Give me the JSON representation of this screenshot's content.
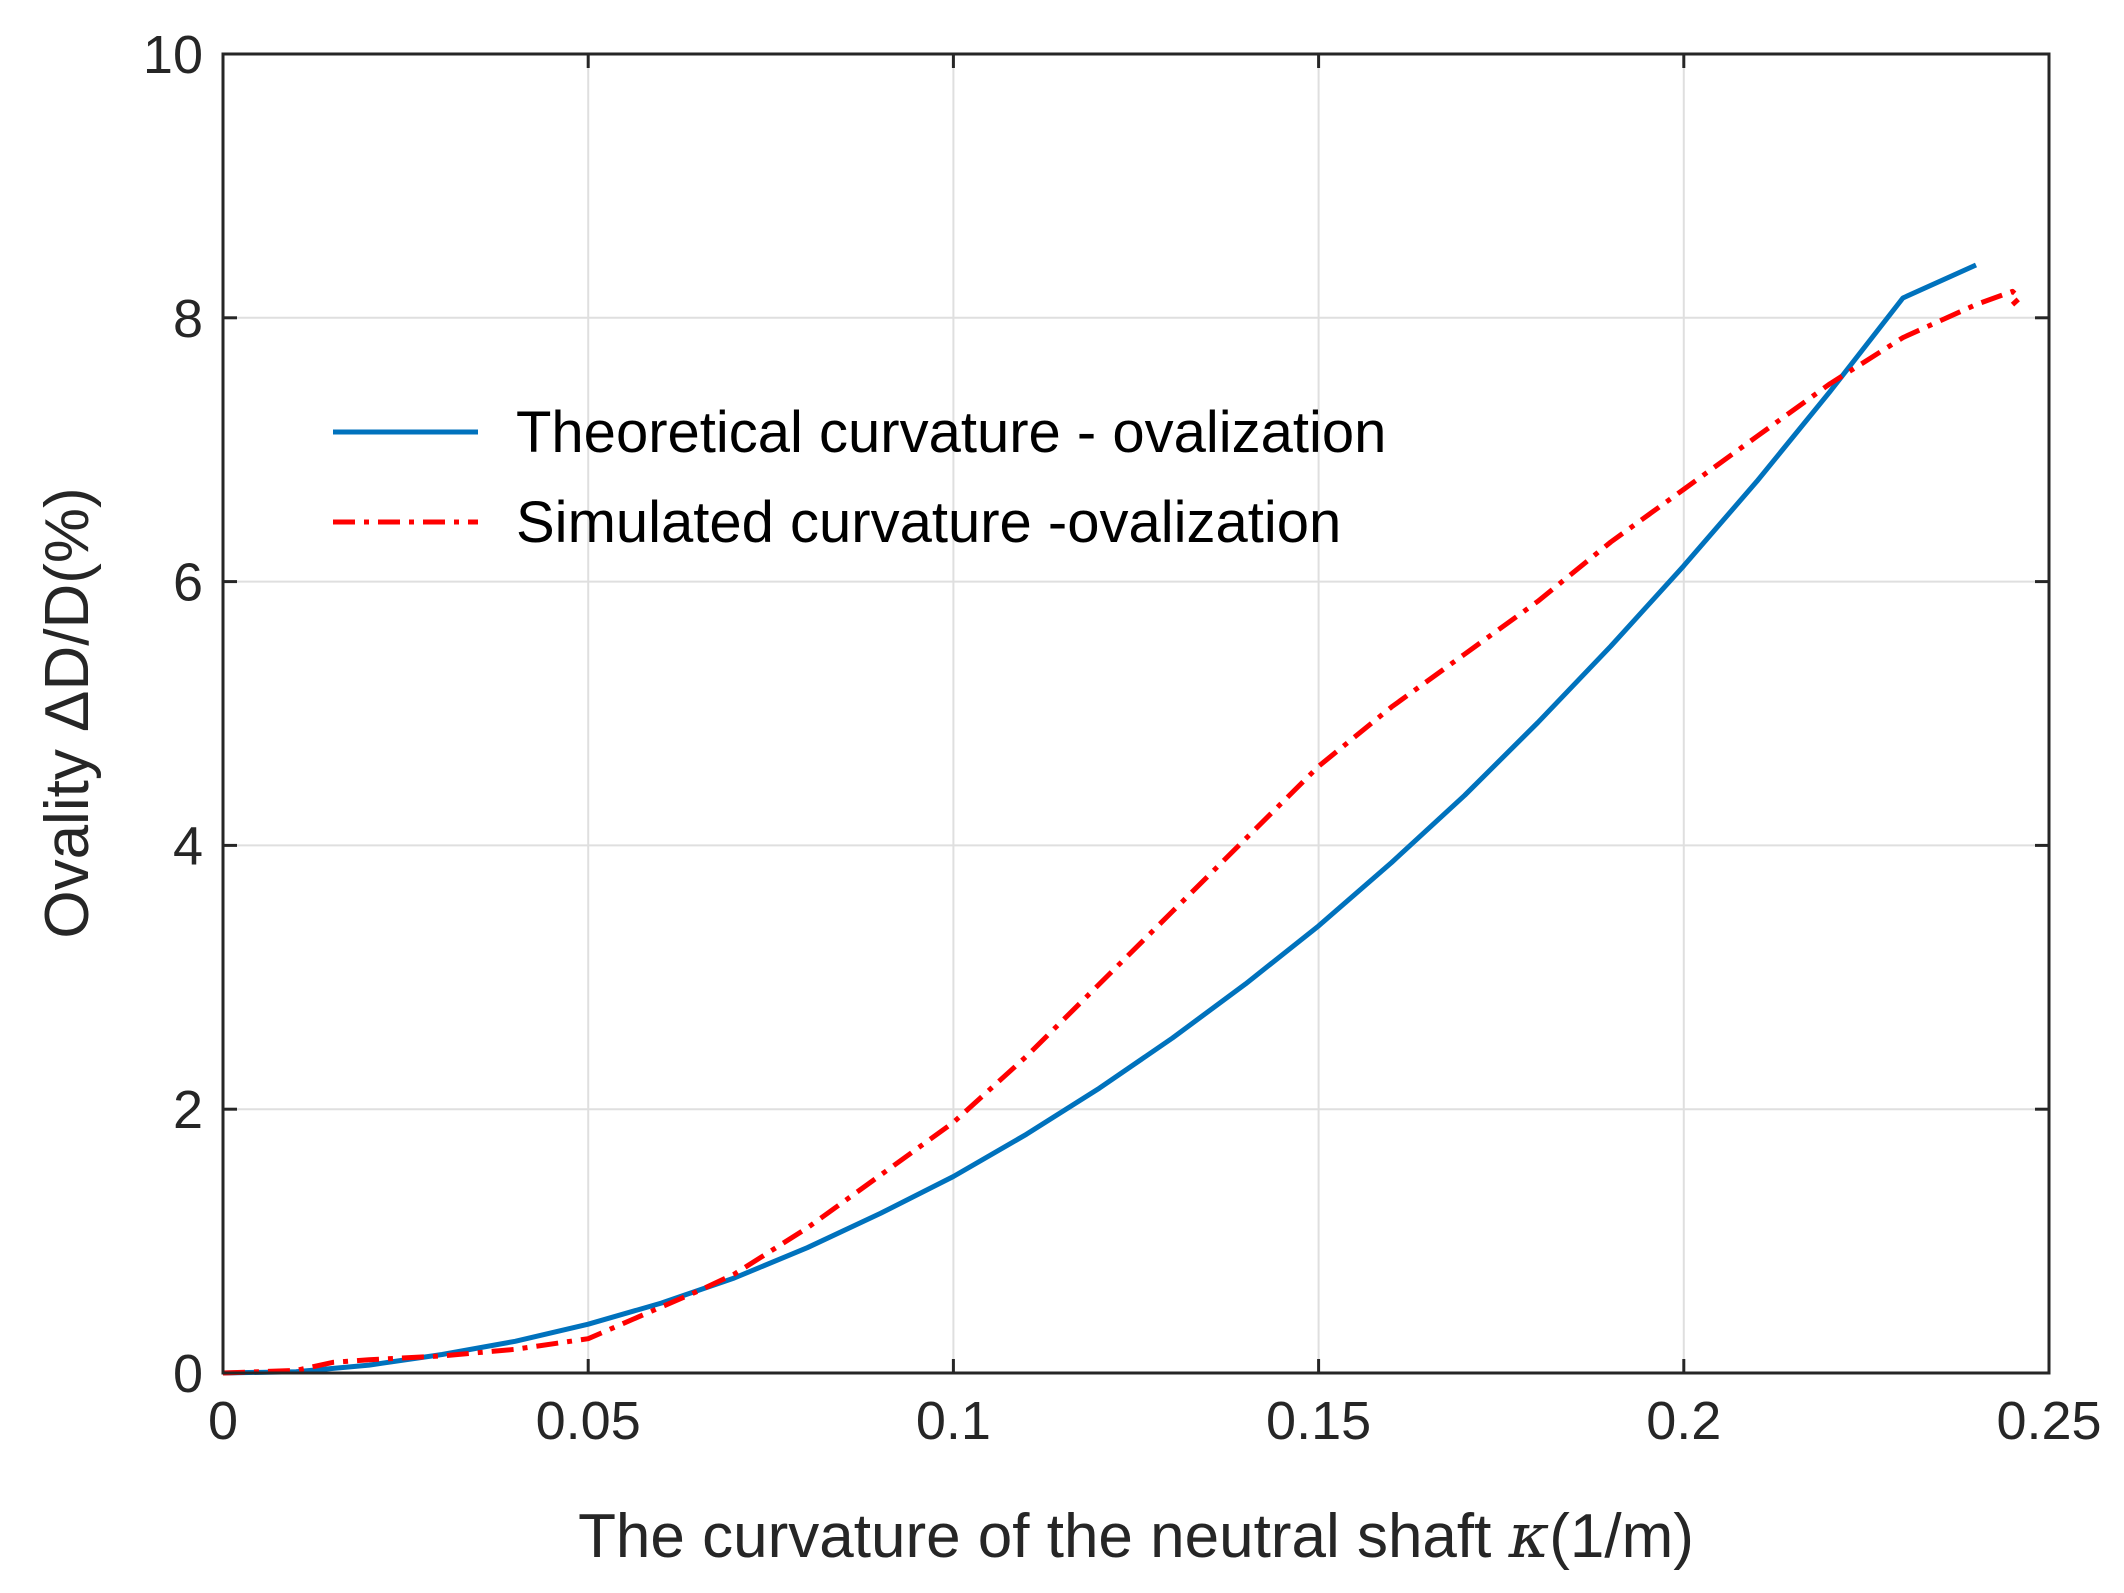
{
  "chart_data": {
    "type": "line",
    "title": "",
    "xlabel": "The curvature of the neutral shaft",
    "xlabel_symbol": "κ",
    "xlabel_units": "(1/m)",
    "ylabel": "Ovality ΔD/D(%)",
    "xlim": [
      0,
      0.25
    ],
    "ylim": [
      0,
      10
    ],
    "grid": true,
    "legend_position": "upper-left",
    "x_ticks": [
      0,
      0.05,
      0.1,
      0.15,
      0.2,
      0.25
    ],
    "x_tick_labels": [
      "0",
      "0.05",
      "0.1",
      "0.15",
      "0.2",
      "0.25"
    ],
    "y_ticks": [
      0,
      2,
      4,
      6,
      8,
      10
    ],
    "y_tick_labels": [
      "0",
      "2",
      "4",
      "6",
      "8",
      "10"
    ],
    "series": [
      {
        "name": "Theoretical curvature - ovalization",
        "color": "#0072BD",
        "style": "solid",
        "x": [
          0,
          0.01,
          0.02,
          0.03,
          0.04,
          0.05,
          0.06,
          0.07,
          0.08,
          0.09,
          0.1,
          0.11,
          0.12,
          0.13,
          0.14,
          0.15,
          0.16,
          0.17,
          0.18,
          0.19,
          0.2,
          0.21,
          0.22,
          0.23,
          0.24
        ],
        "y": [
          0,
          0.01,
          0.06,
          0.14,
          0.24,
          0.37,
          0.53,
          0.72,
          0.95,
          1.21,
          1.49,
          1.81,
          2.16,
          2.54,
          2.95,
          3.39,
          3.87,
          4.38,
          4.93,
          5.51,
          6.12,
          6.76,
          7.44,
          8.15,
          8.4
        ]
      },
      {
        "name": "Simulated curvature -ovalization",
        "color": "#FF0000",
        "style": "dashdot",
        "x": [
          0,
          0.01,
          0.015,
          0.02,
          0.03,
          0.04,
          0.05,
          0.06,
          0.065,
          0.07,
          0.08,
          0.09,
          0.1,
          0.11,
          0.12,
          0.13,
          0.14,
          0.15,
          0.16,
          0.17,
          0.18,
          0.19,
          0.2,
          0.21,
          0.22,
          0.23,
          0.24,
          0.245,
          0.246,
          0.245
        ],
        "y": [
          0,
          0.02,
          0.08,
          0.1,
          0.13,
          0.18,
          0.26,
          0.5,
          0.62,
          0.75,
          1.1,
          1.5,
          1.9,
          2.4,
          2.95,
          3.5,
          4.05,
          4.6,
          5.05,
          5.45,
          5.85,
          6.3,
          6.7,
          7.1,
          7.5,
          7.85,
          8.1,
          8.2,
          8.15,
          8.1
        ]
      }
    ]
  }
}
